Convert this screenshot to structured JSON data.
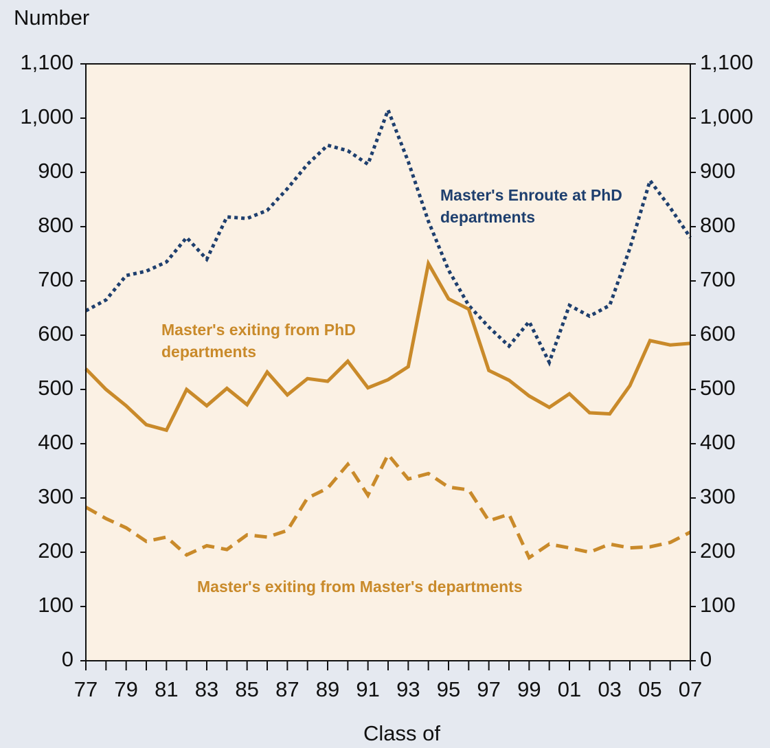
{
  "chart_data": {
    "type": "line",
    "y_axis_label": "Number",
    "x_axis_label": "Class of",
    "categories": [
      "77",
      null,
      "79",
      null,
      "81",
      null,
      "83",
      null,
      "85",
      null,
      "87",
      null,
      "89",
      null,
      "91",
      null,
      "93",
      null,
      "95",
      null,
      "97",
      null,
      "99",
      null,
      "01",
      null,
      "03",
      null,
      "05",
      null,
      "07"
    ],
    "series": [
      {
        "name": "Master's Enroute at PhD departments",
        "color": "#1e3f6e",
        "dash": "dotted",
        "values": [
          645,
          665,
          710,
          718,
          735,
          780,
          740,
          818,
          815,
          830,
          870,
          915,
          950,
          940,
          915,
          1015,
          920,
          810,
          720,
          655,
          615,
          580,
          625,
          550,
          655,
          635,
          655,
          760,
          885,
          835,
          780
        ]
      },
      {
        "name": "Master's exiting from PhD departments",
        "color": "#c98a2a",
        "dash": "solid",
        "values": [
          538,
          500,
          470,
          435,
          425,
          500,
          470,
          502,
          472,
          532,
          490,
          520,
          515,
          552,
          503,
          518,
          542,
          732,
          667,
          648,
          535,
          517,
          488,
          467,
          492,
          457,
          455,
          507,
          590,
          582,
          585
        ]
      },
      {
        "name": "Master's exiting from Master's departments",
        "color": "#c98a2a",
        "dash": "dashed",
        "values": [
          283,
          262,
          245,
          220,
          228,
          195,
          212,
          205,
          232,
          228,
          240,
          300,
          318,
          362,
          305,
          380,
          335,
          345,
          320,
          315,
          258,
          270,
          190,
          215,
          208,
          200,
          215,
          208,
          210,
          218,
          237
        ]
      }
    ],
    "ylim": [
      0,
      1100
    ],
    "yticks": [
      0,
      100,
      200,
      300,
      400,
      500,
      600,
      700,
      800,
      900,
      {
        "value": 1000,
        "label": "1,000"
      },
      {
        "value": 1100,
        "label": "1,100"
      }
    ],
    "y2lim": [
      0,
      1100
    ],
    "y2ticks": [
      0,
      100,
      200,
      300,
      400,
      500,
      600,
      700,
      800,
      900,
      {
        "value": 1000,
        "label": "1,000"
      },
      {
        "value": 1100,
        "label": "1,100"
      }
    ]
  }
}
